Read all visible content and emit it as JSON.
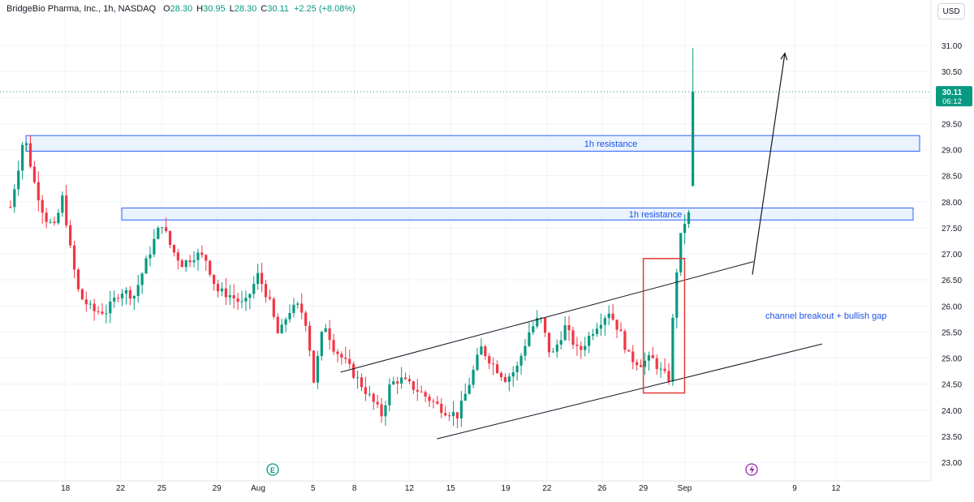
{
  "header": {
    "symbol": "BridgeBio Pharma, Inc., 1h, NASDAQ",
    "open_label": "O",
    "open_value": "28.30",
    "high_label": "H",
    "high_value": "30.95",
    "low_label": "L",
    "low_value": "28.30",
    "close_label": "C",
    "close_value": "30.11",
    "change": "+2.25 (+8.08%)"
  },
  "currency_button": "USD",
  "price_tag": {
    "price": "30.11",
    "countdown": "06:12"
  },
  "annotations": {
    "resistance_upper": "1h resistance",
    "resistance_lower": "1h resistance",
    "breakout_note": "channel breakout + bullish gap"
  },
  "colors": {
    "up": "#089981",
    "down": "#f23645",
    "zone_fill": "#e3effd",
    "zone_stroke": "#2962ff",
    "box_stroke": "#e53935",
    "price_tag": "#089981",
    "grid": "#f0f3fa",
    "trendline": "#131722"
  },
  "icons": {
    "earnings": "earnings-E-icon",
    "dividend": "lightning-icon"
  },
  "chart_data": {
    "type": "candlestick",
    "y_axis": {
      "ticks": [
        "23.00",
        "23.50",
        "24.00",
        "24.50",
        "25.00",
        "25.50",
        "26.00",
        "26.50",
        "27.00",
        "27.50",
        "28.00",
        "28.50",
        "29.00",
        "29.50",
        "30.00",
        "30.50",
        "31.00"
      ],
      "range": [
        22.9,
        31.5
      ]
    },
    "x_axis": {
      "ticks": [
        "18",
        "22",
        "25",
        "29",
        "Aug",
        "5",
        "8",
        "12",
        "15",
        "19",
        "22",
        "26",
        "29",
        "Sep",
        "9",
        "12"
      ]
    },
    "last_close": 30.11,
    "resistance_zones": [
      {
        "label": "1h resistance",
        "low": 28.97,
        "high": 29.27
      },
      {
        "label": "1h resistance",
        "low": 27.65,
        "high": 27.88
      }
    ],
    "channel": {
      "upper_from_date": "Aug 7",
      "upper_from": 24.73,
      "upper_to_date": "Sep 6",
      "upper_to": 26.85,
      "lower_from_date": "Aug 14",
      "lower_from": 23.45,
      "lower_to_date": "Sep 11",
      "lower_to": 25.27
    },
    "breakout_box": {
      "from_date": "Aug 29",
      "to_date": "Sep 1",
      "low": 24.33,
      "high": 26.91
    },
    "projection_arrow": {
      "from": 26.6,
      "to": 30.85
    }
  }
}
